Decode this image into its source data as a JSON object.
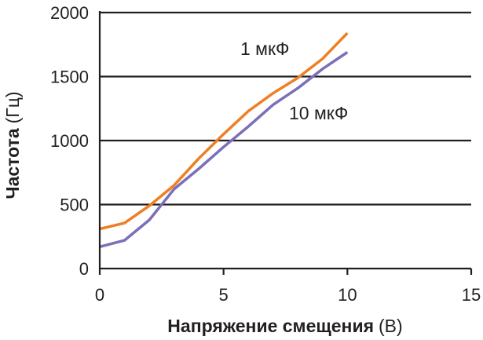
{
  "chart_data": {
    "type": "line",
    "title": "",
    "xlabel_bold": "Напряжение смещения",
    "xlabel_unit": "(В)",
    "ylabel_bold": "Частота",
    "ylabel_unit": "(Гц)",
    "xlim": [
      0,
      15
    ],
    "ylim": [
      0,
      2000
    ],
    "xticks": [
      0,
      5,
      10,
      15
    ],
    "yticks": [
      0,
      500,
      1000,
      1500,
      2000
    ],
    "grid": "horizontal",
    "colors": {
      "series_1uF": "#ee7f22",
      "series_10uF": "#7b6fb8",
      "axis": "#231f20"
    },
    "series": [
      {
        "name": "1 мкФ",
        "x": [
          0,
          1,
          2,
          3,
          4,
          5,
          6,
          7,
          8,
          9,
          10
        ],
        "y": [
          310,
          355,
          490,
          650,
          860,
          1050,
          1230,
          1370,
          1490,
          1640,
          1840
        ]
      },
      {
        "name": "10 мкФ",
        "x": [
          0,
          1,
          2,
          3,
          4,
          5,
          6,
          7,
          8,
          9,
          10
        ],
        "y": [
          170,
          220,
          380,
          620,
          780,
          950,
          1110,
          1280,
          1410,
          1560,
          1690
        ]
      }
    ]
  }
}
